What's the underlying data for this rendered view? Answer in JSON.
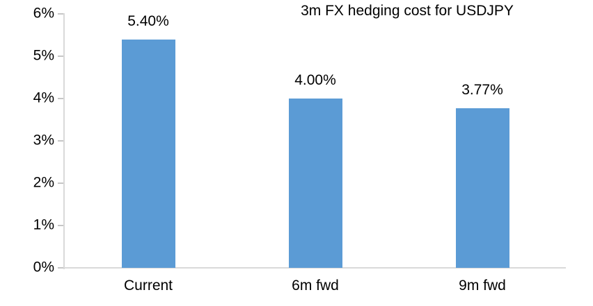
{
  "chart_data": {
    "type": "bar",
    "title": "3m FX hedging cost for USDJPY",
    "categories": [
      "Current",
      "6m fwd",
      "9m fwd"
    ],
    "values": [
      5.4,
      4.0,
      3.77
    ],
    "data_labels": [
      "5.40%",
      "4.00%",
      "3.77%"
    ],
    "xlabel": "",
    "ylabel": "",
    "ylim": [
      0,
      6
    ],
    "y_tick_interval": 1,
    "y_tick_labels": [
      "0%",
      "1%",
      "2%",
      "3%",
      "4%",
      "5%",
      "6%"
    ],
    "grid": "off",
    "legend": "none",
    "colors": {
      "bar": "#5B9BD5",
      "axis_line": "#D9D9D9",
      "tick_mark": "#C6C6C6",
      "text": "#000000",
      "background": "#FFFFFF"
    }
  }
}
